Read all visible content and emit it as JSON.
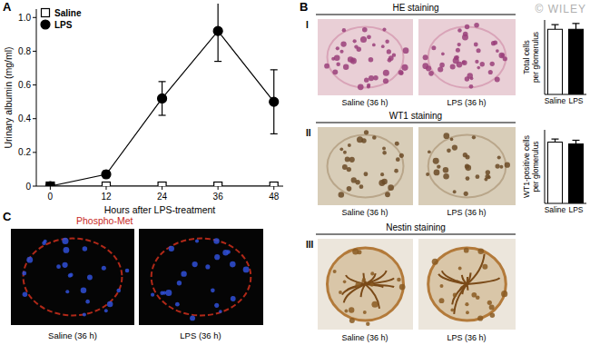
{
  "chart_data": [
    {
      "type": "line",
      "x_label": "Hours after LPS-treatment",
      "y_label": "Urinary albumin (mg/ml)",
      "x": [
        0,
        12,
        24,
        36,
        48
      ],
      "xlim": [
        -3,
        50
      ],
      "xticks": [
        0,
        12,
        24,
        36,
        48
      ],
      "ylim": [
        0,
        1.05
      ],
      "yticks": [
        {
          "value": 0,
          "label": "0"
        },
        {
          "value": 0.2,
          "label": "0.2"
        },
        {
          "value": 0.4,
          "label": "0.4"
        },
        {
          "value": 0.6,
          "label": "0.6"
        },
        {
          "value": 0.8,
          "label": "0.8"
        },
        {
          "value": 1,
          "label": "1.0"
        }
      ],
      "legend": "top-left",
      "series": [
        {
          "name": "Saline",
          "color": "#000000",
          "marker": "square-open",
          "values": [
            0,
            0,
            0,
            0,
            0
          ],
          "errors": [
            0,
            0,
            0,
            0,
            0
          ]
        },
        {
          "name": "LPS",
          "color": "#000000",
          "marker": "circle",
          "values": [
            0,
            0.07,
            0.52,
            0.92,
            0.5
          ],
          "errors": [
            0,
            0.02,
            0.1,
            0.18,
            0.19
          ]
        }
      ]
    },
    {
      "type": "bar",
      "y_label": "Total cells per glomerulus",
      "categories": [
        "Saline",
        "LPS"
      ],
      "values": [
        28,
        28
      ],
      "errors": [
        2,
        2.5
      ],
      "colors": [
        "#ffffff",
        "#000000"
      ],
      "ylim": [
        0,
        32
      ],
      "tick_labels": "x"
    },
    {
      "type": "bar",
      "y_label": "WT1-positive cells per glomerulus",
      "categories": [
        "Saline",
        "LPS"
      ],
      "values": [
        10,
        9.7
      ],
      "errors": [
        0.5,
        0.6
      ],
      "colors": [
        "#ffffff",
        "#000000"
      ],
      "ylim": [
        0,
        12
      ],
      "tick_labels": "x"
    }
  ],
  "figure": {
    "watermark": "© WILEY",
    "panel_a": {
      "label": "A"
    },
    "panel_b": {
      "label": "B",
      "rows": [
        {
          "numeral": "I",
          "stain": "HE staining",
          "captions": [
            "Saline (36 h)",
            "LPS (36 h)"
          ]
        },
        {
          "numeral": "II",
          "stain": "WT1 staining",
          "captions": [
            "Saline (36 h)",
            "LPS (36 h)"
          ]
        },
        {
          "numeral": "III",
          "stain": "Nestin staining",
          "captions": [
            "Saline (36 h)",
            "LPS (36 h)"
          ]
        }
      ]
    },
    "panel_c": {
      "label": "C",
      "stain": "Phospho-Met",
      "captions": [
        "Saline (36 h)",
        "LPS (36 h)"
      ]
    }
  }
}
